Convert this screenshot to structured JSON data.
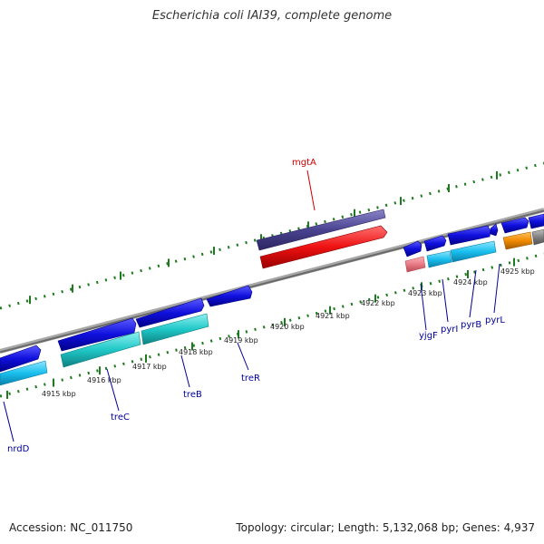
{
  "title": "Escherichia coli IAI39, complete genome",
  "footer": {
    "accession": "Accession: NC_011750",
    "summary": "Topology: circular; Length: 5,132,068 bp; Genes: 4,937"
  },
  "kbp_labels": [
    "4915 kbp",
    "4916 kbp",
    "4917 kbp",
    "4918 kbp",
    "4919 kbp",
    "4920 kbp",
    "4921 kbp",
    "4922 kbp",
    "4923 kbp",
    "4924 kbp",
    "4925 kbp"
  ],
  "genes": [
    {
      "name": "mgtA",
      "color": "#cc0000"
    },
    {
      "name": "nrdD",
      "color": "#000099"
    },
    {
      "name": "treC",
      "color": "#000099"
    },
    {
      "name": "treB",
      "color": "#000099"
    },
    {
      "name": "treR",
      "color": "#000099"
    },
    {
      "name": "yjgF",
      "color": "#000099"
    },
    {
      "name": "pyrI",
      "color": "#000099"
    },
    {
      "name": "pyrB",
      "color": "#000099"
    },
    {
      "name": "pyrL",
      "color": "#000099"
    }
  ],
  "colors": {
    "backbone": "#888888",
    "tick": "#1e7a1e",
    "cds_blue": "#1010dd",
    "cds_cyan": "#19bfee",
    "cds_teal": "#20c8c8",
    "cds_red": "#ee1111",
    "cds_purple": "#4a4390",
    "cds_pink": "#e87a86",
    "cds_orange": "#f08a00",
    "cds_gray": "#808080"
  }
}
